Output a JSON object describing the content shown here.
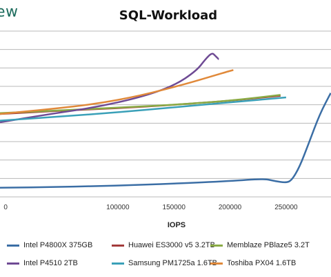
{
  "brand": {
    "text": "ew"
  },
  "chart_data": {
    "type": "line",
    "title": "SQL-Workload",
    "xlabel": "IOPS",
    "ylabel": "",
    "xlim": [
      -5000,
      290000
    ],
    "x_ticks": [
      0,
      100000,
      150000,
      200000,
      250000
    ],
    "x_tick_labels": [
      "0",
      "100000",
      "150000",
      "200000",
      "250000"
    ],
    "ylim": [
      0,
      10
    ],
    "grid": "horizontal",
    "legend_position": "bottom",
    "series": [
      {
        "name": "Intel P4800X 375GB",
        "color": "#3b6ea5",
        "x": [
          -5000,
          50000,
          100000,
          150000,
          200000,
          230000,
          240000,
          250000,
          255000,
          262000,
          270000,
          280000,
          290000
        ],
        "y": [
          0.55,
          0.6,
          0.68,
          0.8,
          0.95,
          1.1,
          0.95,
          0.85,
          1.0,
          1.8,
          3.2,
          5.0,
          6.3
        ]
      },
      {
        "name": "Huawei ES3000 v5 3.2TB",
        "color": "#a33b3b",
        "x": [
          -5000,
          50000,
          100000,
          150000,
          200000,
          245000
        ],
        "y": [
          5.0,
          5.2,
          5.35,
          5.55,
          5.8,
          6.1
        ]
      },
      {
        "name": "Memblaze PBlaze5 3.2T",
        "color": "#8aab45",
        "x": [
          -5000,
          50000,
          100000,
          150000,
          200000,
          245000
        ],
        "y": [
          5.05,
          5.22,
          5.38,
          5.55,
          5.8,
          6.15
        ]
      },
      {
        "name": "Intel P4510 2TB",
        "color": "#6e4a94",
        "x": [
          -5000,
          40000,
          80000,
          120000,
          150000,
          170000,
          178000,
          184000,
          187000,
          190000
        ],
        "y": [
          4.5,
          5.0,
          5.4,
          6.0,
          6.7,
          7.6,
          8.3,
          8.7,
          8.5,
          8.3
        ]
      },
      {
        "name": "Samsung PM1725a 1.6TB",
        "color": "#3aa0b8",
        "x": [
          -5000,
          50000,
          100000,
          150000,
          200000,
          250000
        ],
        "y": [
          4.6,
          4.85,
          5.1,
          5.4,
          5.7,
          6.0
        ]
      },
      {
        "name": "Toshiba PX04 1.6TB",
        "color": "#e0893a",
        "x": [
          -5000,
          40000,
          80000,
          120000,
          160000,
          185000,
          200000,
          203000
        ],
        "y": [
          5.0,
          5.3,
          5.6,
          6.1,
          6.8,
          7.3,
          7.6,
          7.65
        ]
      }
    ]
  }
}
